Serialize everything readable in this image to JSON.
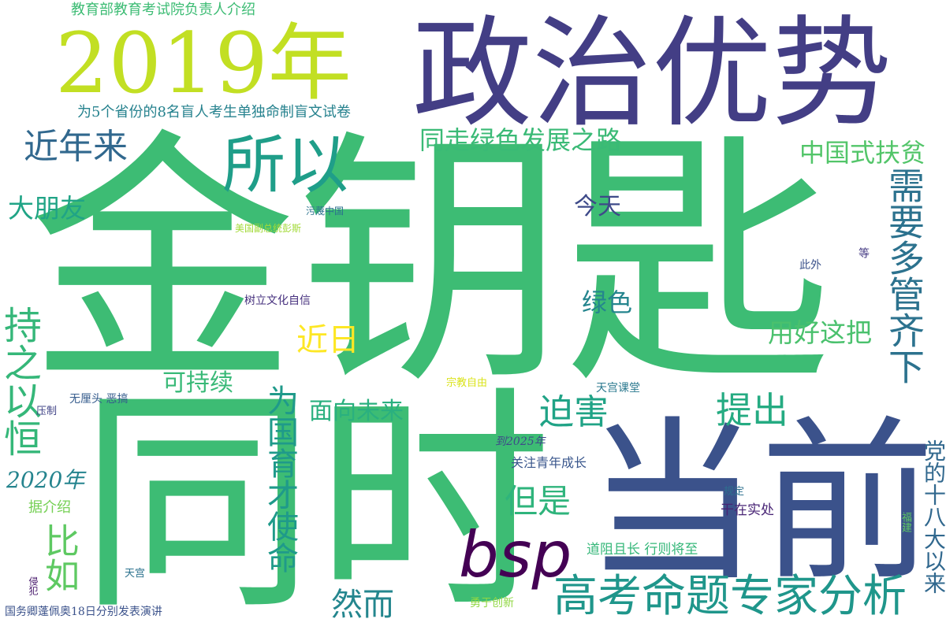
{
  "words": [
    {
      "id": "jinyaoshi",
      "text": "金钥匙",
      "color": "#3dbc74"
    },
    {
      "id": "tongshi",
      "text": "同时",
      "color": "#3dbc74"
    },
    {
      "id": "dangqian",
      "text": "当前",
      "color": "#3b528b"
    },
    {
      "id": "zhengzhiyoushi",
      "text": "政治优势",
      "color": "#433e85"
    },
    {
      "id": "year2019",
      "text": "2019年",
      "color": "#c2df23"
    },
    {
      "id": "suoyi",
      "text": "所以",
      "color": "#1f9e89"
    },
    {
      "id": "bsp",
      "text": "bsp",
      "color": "#440154"
    },
    {
      "id": "gaokao",
      "text": "高考命题专家分析",
      "color": "#1f968b"
    },
    {
      "id": "jinnianlai",
      "text": "近年来",
      "color": "#31688e"
    },
    {
      "id": "tongzou",
      "text": "同走绿色发展之路",
      "color": "#3aba76"
    },
    {
      "id": "zhongguoshi",
      "text": "中国式扶贫",
      "color": "#52c569"
    },
    {
      "id": "xuyao",
      "text": "需要多管齐下",
      "color": "#2c728e"
    },
    {
      "id": "dapengyou",
      "text": "大朋友",
      "color": "#20a486"
    },
    {
      "id": "jintian",
      "text": "今天",
      "color": "#3e4a89"
    },
    {
      "id": "chizhi",
      "text": "持之以恒",
      "color": "#35b779"
    },
    {
      "id": "jinri",
      "text": "近日",
      "color": "#fde725"
    },
    {
      "id": "lvse",
      "text": "绿色",
      "color": "#25858e"
    },
    {
      "id": "yonghao",
      "text": "用好这把",
      "color": "#4ac16d"
    },
    {
      "id": "shulie",
      "text": "树立文化自信",
      "color": "#46307e"
    },
    {
      "id": "kechixu",
      "text": "可持续",
      "color": "#38b977"
    },
    {
      "id": "weiguo",
      "text": "为国育才使命",
      "color": "#1f9a8a"
    },
    {
      "id": "mianxiang",
      "text": "面向未来",
      "color": "#2ab07f"
    },
    {
      "id": "tichu",
      "text": "提出",
      "color": "#25ab82"
    },
    {
      "id": "pohai",
      "text": "迫害",
      "color": "#20a386"
    },
    {
      "id": "danshi",
      "text": "但是",
      "color": "#2fb47c"
    },
    {
      "id": "ranershi",
      "text": "然而",
      "color": "#24868e"
    },
    {
      "id": "biru",
      "text": "比如",
      "color": "#5ec962"
    },
    {
      "id": "year2020",
      "text": "2020年",
      "color": "#25848e"
    },
    {
      "id": "jujieshao",
      "text": "据介绍",
      "color": "#75d054"
    },
    {
      "id": "dangde",
      "text": "党的十八大以来",
      "color": "#31688e"
    },
    {
      "id": "jiaoyubu",
      "text": "教育部教育考试院负责人介绍",
      "color": "#3dbc74"
    },
    {
      "id": "weiwu",
      "text": "为5个省份的8名盲人考生单独命制盲文试卷",
      "color": "#26828e"
    },
    {
      "id": "wuhang",
      "text": "无厘头 恶搞",
      "color": "#365c8d"
    },
    {
      "id": "yazhi",
      "text": "压制",
      "color": "#414487"
    },
    {
      "id": "zongjiao",
      "text": "宗教自由",
      "color": "#dae319"
    },
    {
      "id": "tiangongketang",
      "text": "天宫课堂",
      "color": "#2a788e"
    },
    {
      "id": "dao2025",
      "text": "到2025年",
      "color": "#3e4989"
    },
    {
      "id": "guanzhu",
      "text": "关注青年成长",
      "color": "#39568c"
    },
    {
      "id": "guiding",
      "text": "规定",
      "color": "#2d708e"
    },
    {
      "id": "ganzai",
      "text": "干在实处",
      "color": "#482475"
    },
    {
      "id": "fujian",
      "text": "福建",
      "color": "#5ec962"
    },
    {
      "id": "daozu",
      "text": "道阻且长 行则将至",
      "color": "#35b779"
    },
    {
      "id": "tiangong",
      "text": "天宫",
      "color": "#2c728e"
    },
    {
      "id": "qinfan",
      "text": "侵犯",
      "color": "#481a6c"
    },
    {
      "id": "guowuqing",
      "text": "国务卿蓬佩奥18日分别发表演讲",
      "color": "#3b528b"
    },
    {
      "id": "yongyu",
      "text": "勇于创新",
      "color": "#90d743"
    },
    {
      "id": "wumie",
      "text": "污蔑中国",
      "color": "#2c728e"
    },
    {
      "id": "meiguo",
      "text": "美国副总统彭斯",
      "color": "#a2da37"
    },
    {
      "id": "ciwai",
      "text": "此外",
      "color": "#3b528b"
    },
    {
      "id": "deng",
      "text": "等",
      "color": "#443a83"
    }
  ]
}
